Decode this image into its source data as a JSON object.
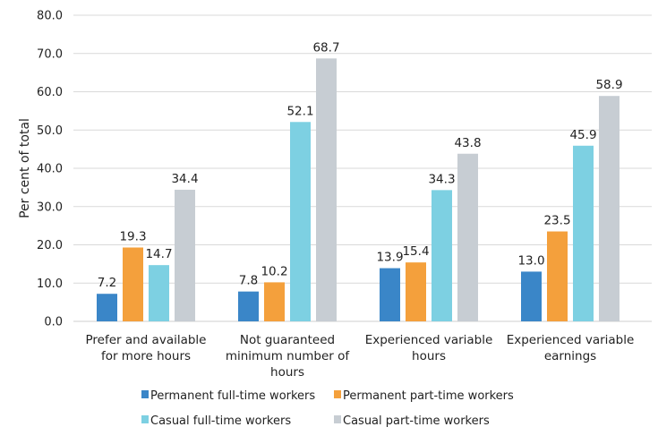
{
  "chart_data": {
    "type": "bar",
    "title": "",
    "xlabel": "",
    "ylabel": "Per cent of total",
    "ylim": [
      0,
      80
    ],
    "yticks": [
      "0.0",
      "10.0",
      "20.0",
      "30.0",
      "40.0",
      "50.0",
      "60.0",
      "70.0",
      "80.0"
    ],
    "grid": true,
    "legend_position": "bottom",
    "categories": [
      [
        "Prefer and available",
        "for more hours"
      ],
      [
        "Not guaranteed",
        "minimum number of",
        "hours"
      ],
      [
        "Experienced variable",
        "hours"
      ],
      [
        "Experienced variable",
        "earnings"
      ]
    ],
    "series": [
      {
        "name": "Permanent full-time workers",
        "color": "#3a86c8",
        "values": [
          7.2,
          7.8,
          13.9,
          13.0
        ],
        "labels": [
          "7.2",
          "7.8",
          "13.9",
          "13.0"
        ]
      },
      {
        "name": "Permanent part-time workers",
        "color": "#f4a03c",
        "values": [
          19.3,
          10.2,
          15.4,
          23.5
        ],
        "labels": [
          "19.3",
          "10.2",
          "15.4",
          "23.5"
        ]
      },
      {
        "name": "Casual full-time workers",
        "color": "#7dd0e2",
        "values": [
          14.7,
          52.1,
          34.3,
          45.9
        ],
        "labels": [
          "14.7",
          "52.1",
          "34.3",
          "45.9"
        ]
      },
      {
        "name": "Casual part-time workers",
        "color": "#c7cdd3",
        "values": [
          34.4,
          68.7,
          43.8,
          58.9
        ],
        "labels": [
          "34.4",
          "68.7",
          "43.8",
          "58.9"
        ]
      }
    ]
  }
}
